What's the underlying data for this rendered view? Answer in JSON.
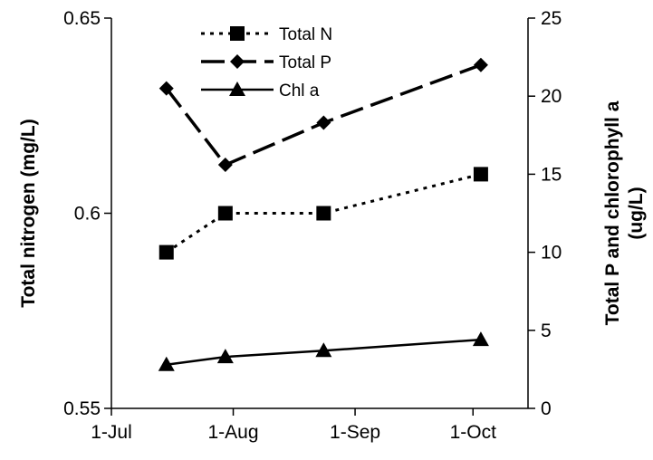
{
  "chart_data": {
    "type": "line",
    "x": [
      "2023-07-15",
      "2023-07-30",
      "2023-08-24",
      "2023-10-03"
    ],
    "x_ticks": [
      "1-Jul",
      "1-Aug",
      "1-Sep",
      "1-Oct"
    ],
    "xlim": [
      "2023-07-01",
      "2023-10-15"
    ],
    "y_left": {
      "label": "Total nitrogen (mg/L)",
      "ylim": [
        0.55,
        0.65
      ],
      "ticks": [
        "0.55",
        "0.6",
        "0.65"
      ]
    },
    "y_right": {
      "label_line1": "Total P and chlorophyll a",
      "label_line2": "(ug/L)",
      "ylim": [
        0,
        25
      ],
      "ticks": [
        "0",
        "5",
        "10",
        "15",
        "20",
        "25"
      ]
    },
    "series": [
      {
        "name": "Total N",
        "axis": "left",
        "marker": "square",
        "dash": "dotted",
        "values": [
          0.59,
          0.6,
          0.6,
          0.61
        ]
      },
      {
        "name": "Total P",
        "axis": "right",
        "marker": "diamond",
        "dash": "dashed",
        "values": [
          20.5,
          15.6,
          18.3,
          22.0
        ]
      },
      {
        "name": "Chl a",
        "axis": "right",
        "marker": "triangle",
        "dash": "solid",
        "values": [
          2.8,
          3.3,
          3.7,
          4.4
        ]
      }
    ],
    "legend_position": "top",
    "grid": false
  }
}
